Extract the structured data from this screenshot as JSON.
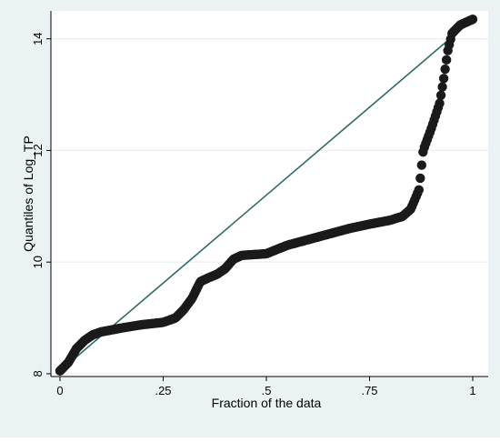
{
  "chart_data": {
    "type": "scatter",
    "xlabel": "Fraction of the data",
    "ylabel": "Quantiles of Log_TP",
    "xlim": [
      0,
      1
    ],
    "ylim": [
      7.95,
      14.5
    ],
    "x_ticks": [
      0,
      0.25,
      0.5,
      0.75,
      1
    ],
    "x_tick_labels": [
      "0",
      ".25",
      ".5",
      ".75",
      "1"
    ],
    "y_ticks": [
      8,
      10,
      12,
      14
    ],
    "y_tick_labels": [
      "8",
      "10",
      "12",
      "14"
    ],
    "grid": "horizontal",
    "legend": "none",
    "reference_line": {
      "x": [
        0,
        1
      ],
      "y": [
        8.05,
        14.35
      ]
    },
    "quantile_curve": [
      [
        0.0,
        8.05
      ],
      [
        0.02,
        8.2
      ],
      [
        0.04,
        8.45
      ],
      [
        0.06,
        8.6
      ],
      [
        0.08,
        8.7
      ],
      [
        0.1,
        8.75
      ],
      [
        0.15,
        8.82
      ],
      [
        0.2,
        8.88
      ],
      [
        0.25,
        8.92
      ],
      [
        0.28,
        9.0
      ],
      [
        0.3,
        9.15
      ],
      [
        0.32,
        9.35
      ],
      [
        0.34,
        9.65
      ],
      [
        0.36,
        9.72
      ],
      [
        0.38,
        9.78
      ],
      [
        0.4,
        9.88
      ],
      [
        0.42,
        10.05
      ],
      [
        0.44,
        10.12
      ],
      [
        0.5,
        10.15
      ],
      [
        0.55,
        10.3
      ],
      [
        0.6,
        10.4
      ],
      [
        0.65,
        10.5
      ],
      [
        0.7,
        10.6
      ],
      [
        0.75,
        10.68
      ],
      [
        0.8,
        10.75
      ],
      [
        0.83,
        10.82
      ],
      [
        0.85,
        10.95
      ],
      [
        0.87,
        11.3
      ],
      [
        0.88,
        12.0
      ],
      [
        0.9,
        12.4
      ],
      [
        0.92,
        12.85
      ],
      [
        0.93,
        13.3
      ],
      [
        0.94,
        13.8
      ],
      [
        0.95,
        14.1
      ],
      [
        0.97,
        14.25
      ],
      [
        1.0,
        14.35
      ]
    ],
    "point_count": 300
  },
  "colors": {
    "outer_background": "#eaf2f3",
    "plot_background": "#ffffff",
    "marker": "#1a1a1a",
    "reference_line": "#2e6b68",
    "grid": "#e4ecee"
  }
}
